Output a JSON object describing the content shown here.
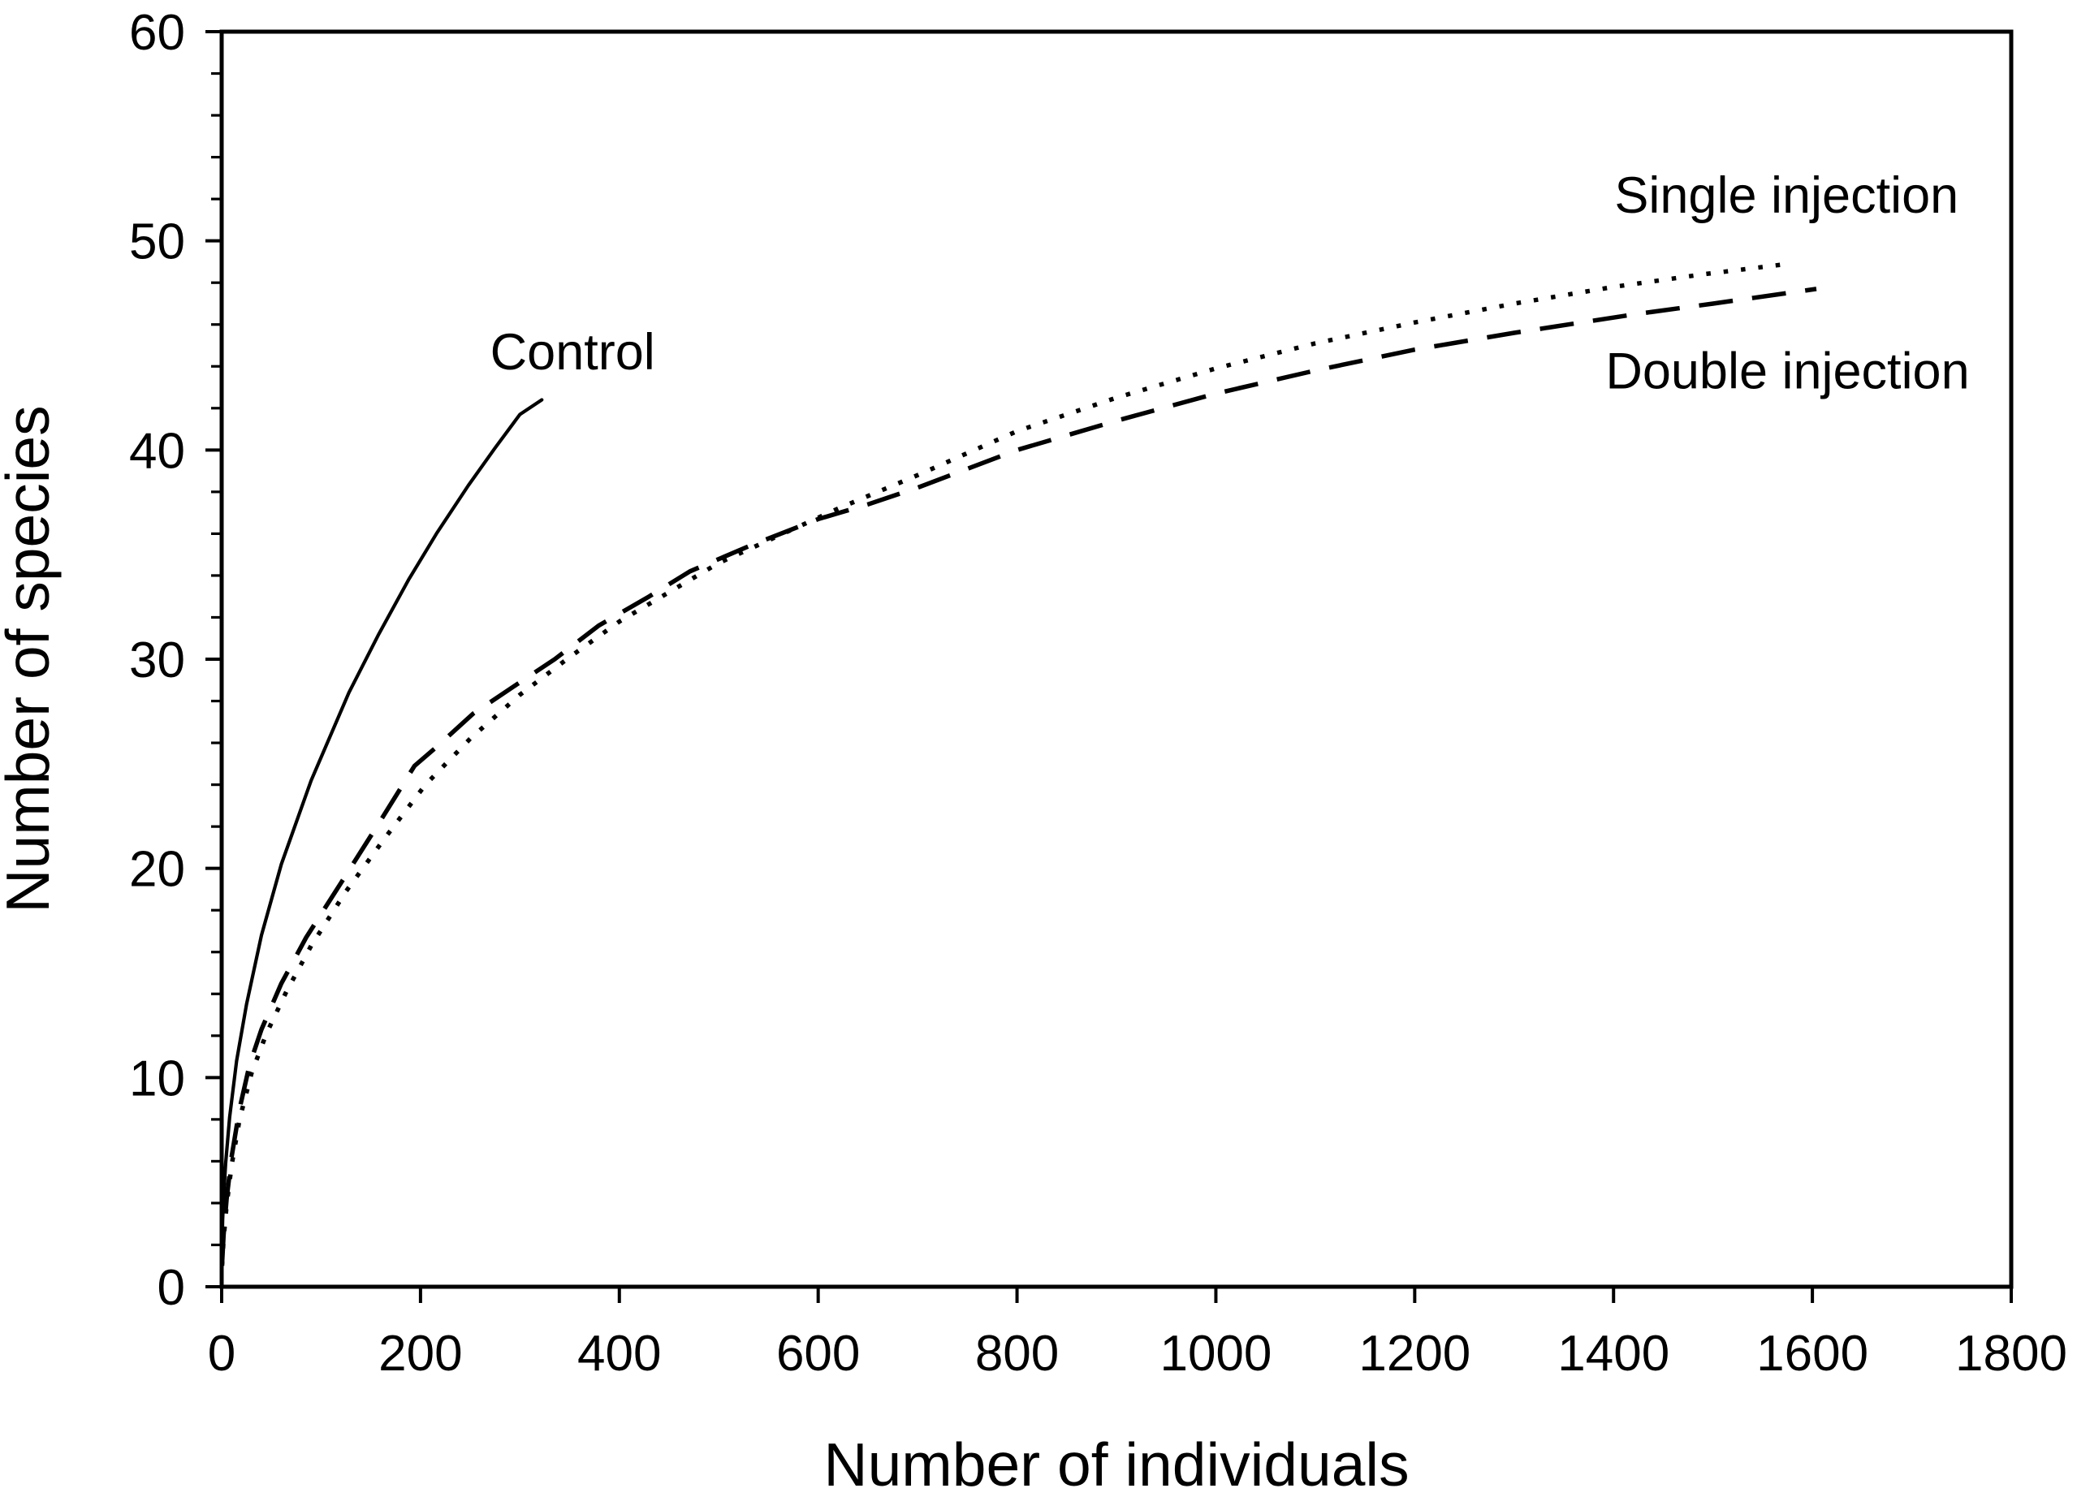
{
  "figure": {
    "background": "#ffffff",
    "ink_color": "#000000"
  },
  "chart_data": {
    "type": "line",
    "title": "",
    "xlabel": "Number of individuals",
    "ylabel": "Number of species",
    "xlim": [
      0,
      1800
    ],
    "ylim": [
      0,
      60
    ],
    "x_major_ticks": [
      0,
      200,
      400,
      600,
      800,
      1000,
      1200,
      1400,
      1600,
      1800
    ],
    "x_tick_labels": [
      "0",
      "200",
      "400",
      "600",
      "800",
      "1000",
      "1200",
      "1400",
      "1600",
      "1800"
    ],
    "y_major_ticks": [
      0,
      10,
      20,
      30,
      40,
      50,
      60
    ],
    "y_tick_labels": [
      "0",
      "10",
      "20",
      "30",
      "40",
      "50",
      "60"
    ],
    "y_minor_step": 2,
    "x_minor_step": 0,
    "grid": false,
    "frame": "full-box",
    "legend_position": "inline-annotations",
    "series": [
      {
        "name": "Control",
        "style": "solid",
        "color": "#000000",
        "points": [
          [
            0.3,
            1.8
          ],
          [
            1,
            3.2
          ],
          [
            2,
            4.3
          ],
          [
            4,
            5.9
          ],
          [
            8,
            8.1
          ],
          [
            15,
            10.8
          ],
          [
            25,
            13.5
          ],
          [
            40,
            16.8
          ],
          [
            60,
            20.2
          ],
          [
            90,
            24.2
          ],
          [
            128,
            28.4
          ],
          [
            158,
            31.2
          ],
          [
            188,
            33.8
          ],
          [
            216,
            36.0
          ],
          [
            248,
            38.3
          ],
          [
            275,
            40.1
          ],
          [
            300,
            41.7
          ],
          [
            322,
            42.4
          ]
        ]
      },
      {
        "name": "Single injection",
        "style": "dotted",
        "color": "#000000",
        "points": [
          [
            0.4,
            1.0
          ],
          [
            2,
            2.3
          ],
          [
            5,
            3.9
          ],
          [
            10,
            5.8
          ],
          [
            18,
            8.0
          ],
          [
            30,
            10.2
          ],
          [
            45,
            12.1
          ],
          [
            65,
            14.1
          ],
          [
            90,
            16.3
          ],
          [
            125,
            18.9
          ],
          [
            165,
            21.5
          ],
          [
            205,
            24.0
          ],
          [
            250,
            26.2
          ],
          [
            300,
            28.3
          ],
          [
            350,
            30.1
          ],
          [
            400,
            31.8
          ],
          [
            450,
            33.2
          ],
          [
            500,
            34.6
          ],
          [
            560,
            35.9
          ],
          [
            620,
            37.2
          ],
          [
            700,
            38.8
          ],
          [
            800,
            40.9
          ],
          [
            900,
            42.5
          ],
          [
            1000,
            43.9
          ],
          [
            1100,
            45.1
          ],
          [
            1200,
            46.1
          ],
          [
            1300,
            47.0
          ],
          [
            1400,
            47.8
          ],
          [
            1490,
            48.4
          ],
          [
            1576,
            48.9
          ]
        ]
      },
      {
        "name": "Double injection",
        "style": "dashed",
        "color": "#000000",
        "points": [
          [
            0.4,
            1.1
          ],
          [
            2,
            2.5
          ],
          [
            5,
            4.2
          ],
          [
            10,
            6.2
          ],
          [
            18,
            8.5
          ],
          [
            28,
            10.6
          ],
          [
            40,
            12.3
          ],
          [
            60,
            14.5
          ],
          [
            85,
            16.7
          ],
          [
            120,
            19.3
          ],
          [
            160,
            22.3
          ],
          [
            194,
            24.9
          ],
          [
            216,
            25.8
          ],
          [
            253,
            27.4
          ],
          [
            297,
            28.8
          ],
          [
            335,
            30.0
          ],
          [
            379,
            31.6
          ],
          [
            430,
            33.0
          ],
          [
            471,
            34.2
          ],
          [
            530,
            35.4
          ],
          [
            600,
            36.7
          ],
          [
            650,
            37.4
          ],
          [
            700,
            38.2
          ],
          [
            800,
            40.0
          ],
          [
            900,
            41.4
          ],
          [
            1000,
            42.7
          ],
          [
            1100,
            43.8
          ],
          [
            1200,
            44.8
          ],
          [
            1300,
            45.6
          ],
          [
            1423,
            46.5
          ],
          [
            1500,
            47.0
          ],
          [
            1604,
            47.7
          ]
        ]
      }
    ],
    "annotations": [
      {
        "text": "Control",
        "x": 353,
        "y": 44.7,
        "series": "Control"
      },
      {
        "text": "Single injection",
        "x": 1574,
        "y": 52.2,
        "series": "Single injection"
      },
      {
        "text": "Double injection",
        "x": 1575,
        "y": 43.8,
        "series": "Double injection"
      }
    ]
  }
}
